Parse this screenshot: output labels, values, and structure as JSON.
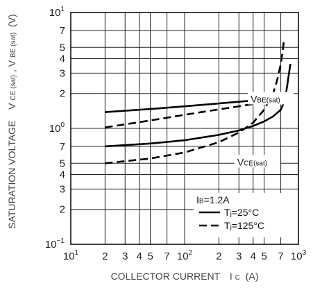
{
  "chart_data": {
    "type": "line",
    "xlabel": {
      "text": "COLLECTOR CURRENT",
      "symbol": "I",
      "sub": "C",
      "unit": "(A)"
    },
    "ylabel": {
      "text": "SATURATION VOLTAGE",
      "sym1": "V",
      "sub1": "CE (sat)",
      "sep": ", ",
      "sym2": "V",
      "sub2": "BE (sat)",
      "unit": "(V)"
    },
    "x_scale": "log",
    "y_scale": "log",
    "xlim": [
      10,
      1000
    ],
    "ylim": [
      0.1,
      10
    ],
    "grid": true,
    "x_ticks": [
      {
        "value": 10,
        "base": "10",
        "exp": "1"
      },
      {
        "value": 20,
        "base": "2",
        "exp": ""
      },
      {
        "value": 30,
        "base": "3",
        "exp": ""
      },
      {
        "value": 40,
        "base": "4",
        "exp": ""
      },
      {
        "value": 50,
        "base": "5",
        "exp": ""
      },
      {
        "value": 70,
        "base": "7",
        "exp": ""
      },
      {
        "value": 100,
        "base": "10",
        "exp": "2"
      },
      {
        "value": 200,
        "base": "2",
        "exp": ""
      },
      {
        "value": 300,
        "base": "3",
        "exp": ""
      },
      {
        "value": 400,
        "base": "4",
        "exp": ""
      },
      {
        "value": 500,
        "base": "5",
        "exp": ""
      },
      {
        "value": 700,
        "base": "7",
        "exp": ""
      },
      {
        "value": 1000,
        "base": "10",
        "exp": "3"
      }
    ],
    "y_ticks": [
      {
        "value": 0.1,
        "base": "10",
        "exp": "−1"
      },
      {
        "value": 0.2,
        "base": "2",
        "exp": ""
      },
      {
        "value": 0.3,
        "base": "3",
        "exp": ""
      },
      {
        "value": 0.4,
        "base": "4",
        "exp": ""
      },
      {
        "value": 0.5,
        "base": "5",
        "exp": ""
      },
      {
        "value": 0.7,
        "base": "7",
        "exp": ""
      },
      {
        "value": 1,
        "base": "10",
        "exp": "0"
      },
      {
        "value": 2,
        "base": "2",
        "exp": ""
      },
      {
        "value": 3,
        "base": "3",
        "exp": ""
      },
      {
        "value": 4,
        "base": "4",
        "exp": ""
      },
      {
        "value": 5,
        "base": "5",
        "exp": ""
      },
      {
        "value": 7,
        "base": "7",
        "exp": ""
      },
      {
        "value": 10,
        "base": "10",
        "exp": "1"
      }
    ],
    "series": [
      {
        "curve": "VBE(sat)",
        "condition": "Tj=25°C",
        "style": "solid",
        "x": [
          20,
          50,
          100,
          200,
          400,
          600,
          750
        ],
        "y": [
          1.38,
          1.47,
          1.55,
          1.64,
          1.74,
          1.82,
          1.9
        ]
      },
      {
        "curve": "VBE(sat)",
        "condition": "Tj=125°C",
        "style": "dashed",
        "x": [
          20,
          50,
          100,
          200,
          400,
          600,
          700
        ],
        "y": [
          1.02,
          1.17,
          1.31,
          1.46,
          1.62,
          1.76,
          1.88
        ]
      },
      {
        "curve": "VCE(sat)",
        "condition": "Tj=25°C",
        "style": "solid",
        "x": [
          20,
          50,
          100,
          200,
          300,
          400,
          500,
          600,
          700,
          760,
          800,
          850
        ],
        "y": [
          0.7,
          0.74,
          0.79,
          0.88,
          0.96,
          1.05,
          1.15,
          1.27,
          1.45,
          1.75,
          2.4,
          3.6
        ]
      },
      {
        "curve": "VCE(sat)",
        "condition": "Tj=125°C",
        "style": "dashed",
        "x": [
          20,
          50,
          100,
          200,
          300,
          400,
          500,
          600,
          650,
          700,
          730,
          750
        ],
        "y": [
          0.5,
          0.55,
          0.62,
          0.76,
          0.92,
          1.12,
          1.45,
          2.0,
          2.6,
          3.6,
          4.8,
          6.0
        ]
      }
    ],
    "annotations": [
      {
        "sym": "V",
        "sub": "BE(sat)",
        "x": 380,
        "y": 1.75
      },
      {
        "sym": "V",
        "sub": "CE(sat)",
        "x": 290,
        "y": 0.5
      }
    ],
    "legend": {
      "position": "bottom-right",
      "header": {
        "sym": "I",
        "sub": "B",
        "text": "=1.2A"
      },
      "entries": [
        {
          "style": "solid",
          "sym": "T",
          "sub": "j",
          "text": "=25°C"
        },
        {
          "style": "dashed",
          "sym": "T",
          "sub": "j",
          "text": "=125°C"
        }
      ]
    }
  }
}
